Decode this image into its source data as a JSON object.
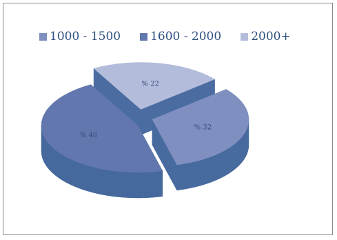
{
  "chart_data": {
    "type": "pie",
    "style": "3d-exploded",
    "title": "",
    "legend_position": "top",
    "categories": [
      "1000 - 1500",
      "1600 - 2000",
      "2000+"
    ],
    "values": [
      32,
      46,
      22
    ],
    "data_labels": [
      "% 32",
      "% 46",
      "% 22"
    ],
    "colors": {
      "1000 - 1500": {
        "top": "#7f8fc0",
        "side": "#476a9f"
      },
      "1600 - 2000": {
        "top": "#6277ad",
        "side": "#45689d"
      },
      "2000+": {
        "top": "#b4bcdb",
        "side": "#4a6ca1"
      }
    }
  }
}
